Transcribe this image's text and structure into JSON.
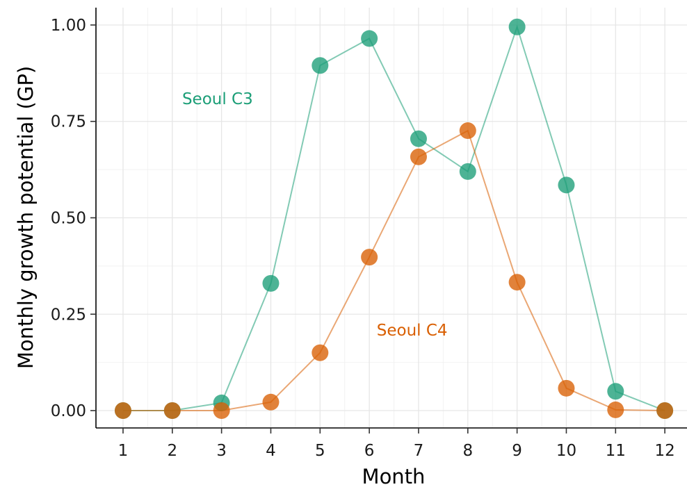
{
  "chart_data": {
    "type": "line",
    "xlabel": "Month",
    "ylabel": "Monthly growth potential (GP)",
    "x": [
      1,
      2,
      3,
      4,
      5,
      6,
      7,
      8,
      9,
      10,
      11,
      12
    ],
    "xlim": [
      0.45,
      12.45
    ],
    "ylim": [
      -0.045,
      1.045
    ],
    "yticks": [
      0,
      0.25,
      0.5,
      0.75,
      1
    ],
    "ytick_labels": [
      "0.00",
      "0.25",
      "0.50",
      "0.75",
      "1.00"
    ],
    "xtick_labels": [
      "1",
      "2",
      "3",
      "4",
      "5",
      "6",
      "7",
      "8",
      "9",
      "10",
      "11",
      "12"
    ],
    "grid": true,
    "series": [
      {
        "name": "Seoul C3",
        "color": "#1b9e77",
        "values": [
          0,
          0,
          0.02,
          0.33,
          0.895,
          0.965,
          0.705,
          0.62,
          0.995,
          0.585,
          0.05,
          0
        ],
        "label_pos": {
          "x": 2.2,
          "y": 0.795
        }
      },
      {
        "name": "Seoul C4",
        "color": "#d95f02",
        "values": [
          0,
          0,
          0,
          0.022,
          0.15,
          0.398,
          0.658,
          0.726,
          0.333,
          0.058,
          0.002,
          0
        ],
        "label_pos": {
          "x": 6.15,
          "y": 0.195
        }
      }
    ]
  }
}
